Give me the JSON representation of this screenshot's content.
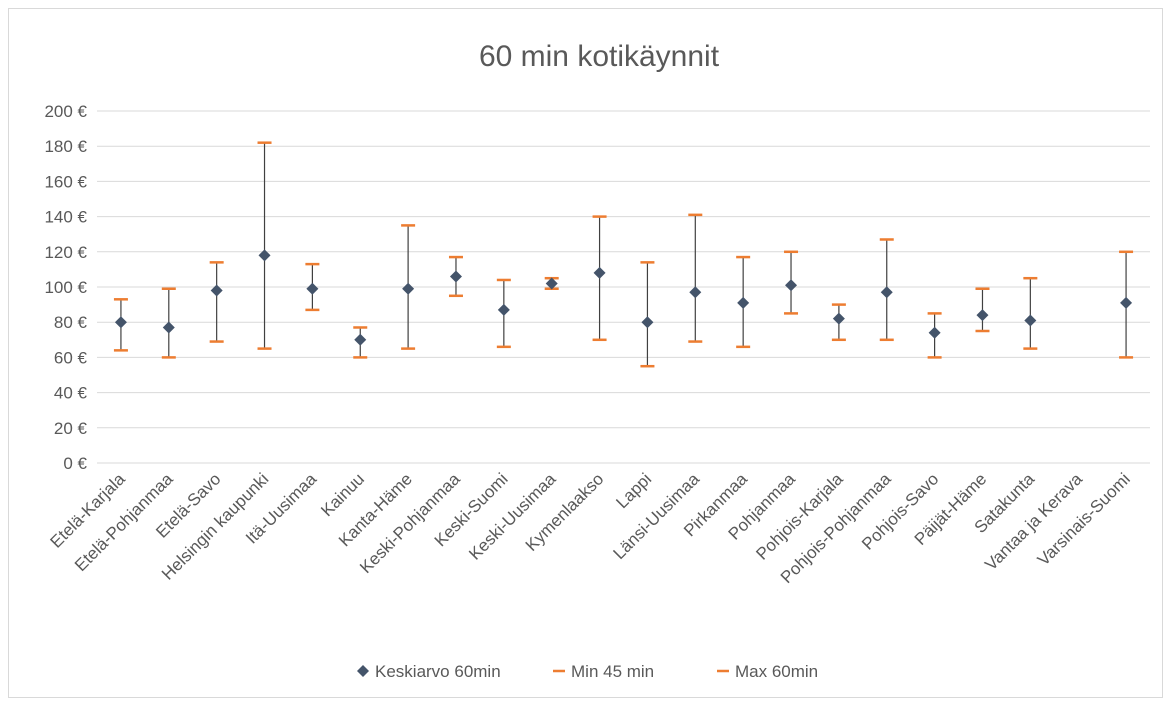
{
  "chart_data": {
    "type": "scatter",
    "title": "60 min kotikäynnit",
    "xlabel": "",
    "ylabel": "",
    "ylim": [
      0,
      200
    ],
    "yticks": [
      0,
      20,
      40,
      60,
      80,
      100,
      120,
      140,
      160,
      180,
      200
    ],
    "ytick_labels": [
      "0 €",
      "20 €",
      "40 €",
      "60 €",
      "80 €",
      "100 €",
      "120 €",
      "140 €",
      "160 €",
      "180 €",
      "200 €"
    ],
    "grid": true,
    "legend_position": "bottom",
    "categories": [
      "Etelä-Karjala",
      "Etelä-Pohjanmaa",
      "Etelä-Savo",
      "Helsingin kaupunki",
      "Itä-Uusimaa",
      "Kainuu",
      "Kanta-Häme",
      "Keski-Pohjanmaa",
      "Keski-Suomi",
      "Keski-Uusimaa",
      "Kymenlaakso",
      "Lappi",
      "Länsi-Uusimaa",
      "Pirkanmaa",
      "Pohjanmaa",
      "Pohjois-Karjala",
      "Pohjois-Pohjanmaa",
      "Pohjois-Savo",
      "Päijät-Häme",
      "Satakunta",
      "Vantaa ja Kerava",
      "Varsinais-Suomi"
    ],
    "series": [
      {
        "name": "Keskiarvo 60min",
        "marker": "diamond",
        "color": "#44546a",
        "values": [
          80,
          77,
          98,
          118,
          99,
          70,
          99,
          106,
          87,
          102,
          108,
          80,
          97,
          91,
          101,
          82,
          97,
          74,
          84,
          81,
          null,
          91
        ]
      },
      {
        "name": "Min 45 min",
        "marker": "dash",
        "color": "#ed7d31",
        "values": [
          64,
          60,
          69,
          65,
          87,
          60,
          65,
          95,
          66,
          99,
          70,
          55,
          69,
          66,
          85,
          70,
          70,
          60,
          75,
          65,
          null,
          60
        ]
      },
      {
        "name": "Max 60min",
        "marker": "dash",
        "color": "#ed7d31",
        "values": [
          93,
          99,
          114,
          182,
          113,
          77,
          135,
          117,
          104,
          105,
          140,
          114,
          141,
          117,
          120,
          90,
          127,
          85,
          99,
          105,
          null,
          120
        ]
      }
    ]
  }
}
